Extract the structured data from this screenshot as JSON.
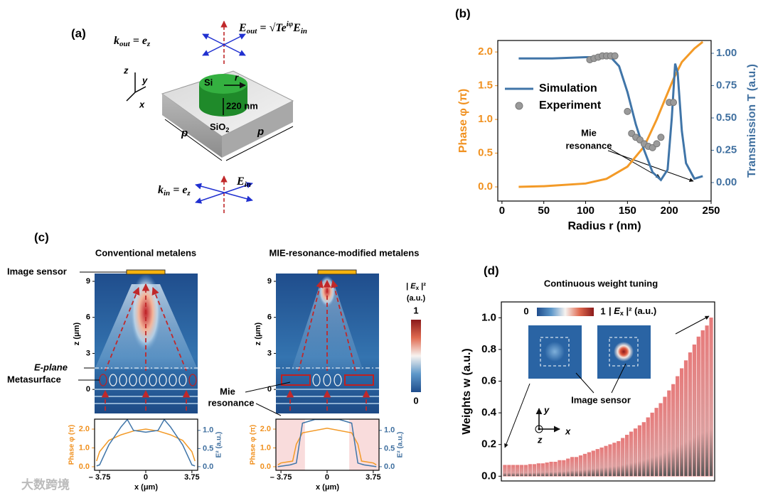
{
  "panel_labels": [
    "(a)",
    "(b)",
    "(c)",
    "(d)"
  ],
  "diagram": {
    "k_out": [
      "k",
      "out",
      " = ",
      "e",
      "z"
    ],
    "E_out": [
      "E",
      "out",
      " = √",
      "T",
      "e",
      "iφ",
      "E",
      "in"
    ],
    "si": "Si",
    "r": "r",
    "height": "220 nm",
    "p_left": "p",
    "p_right": "p",
    "substrate": [
      "SiO",
      "2"
    ],
    "k_in": [
      "k",
      "in",
      " = ",
      "e",
      "z"
    ],
    "E_in": [
      "E",
      "in"
    ],
    "axes": [
      "z",
      "y",
      "x"
    ]
  },
  "chart_data": [
    {
      "type": "line",
      "x_label": "Radius r (nm)",
      "y_label": "Phase φ (π)",
      "y2_label": "Transmission T (a.u.)",
      "annotation": [
        "Mie",
        "resonance"
      ],
      "xlim": [
        -5,
        250
      ],
      "xticks": [
        0,
        50,
        100,
        150,
        200,
        250
      ],
      "ylim": [
        -0.21,
        2.17
      ],
      "yticks": [
        {
          "value": 0,
          "label": "0.0"
        },
        {
          "value": 0.5,
          "label": "0.5"
        },
        {
          "value": 1,
          "label": "1.0"
        },
        {
          "value": 1.5,
          "label": "1.5"
        },
        {
          "value": 2,
          "label": "2.0"
        }
      ],
      "y2lim": [
        -0.143,
        1.099
      ],
      "y2ticks": [
        {
          "value": 0,
          "label": "0.00"
        },
        {
          "value": 0.25,
          "label": "0.25"
        },
        {
          "value": 0.5,
          "label": "0.50"
        },
        {
          "value": 0.75,
          "label": "0.75"
        },
        {
          "value": 1,
          "label": "1.00"
        }
      ],
      "ycolor": "#f0901e",
      "y2color": "#3f6f9f",
      "legend": "center left",
      "series": [
        {
          "color": "#f39a27",
          "x": [
            20,
            50,
            100,
            125,
            150,
            170,
            185,
            195,
            205,
            215,
            230,
            240
          ],
          "values": [
            0.0,
            0.01,
            0.05,
            0.12,
            0.3,
            0.6,
            1.0,
            1.3,
            1.6,
            1.85,
            2.05,
            2.15
          ]
        },
        {
          "name": "Simulation",
          "color": "#4075a8",
          "axis": "y2",
          "x": [
            20,
            60,
            100,
            130,
            140,
            150,
            160,
            170,
            180,
            190,
            198,
            203,
            207,
            210,
            215,
            220,
            230,
            240
          ],
          "values": [
            0.96,
            0.96,
            0.97,
            0.97,
            0.9,
            0.7,
            0.45,
            0.25,
            0.08,
            0.02,
            0.1,
            0.5,
            0.92,
            0.85,
            0.4,
            0.15,
            0.03,
            0.05
          ]
        },
        {
          "name": "Experiment",
          "color": "#9a9a9a",
          "axis": "y2",
          "mode": "markers",
          "x": [
            105,
            110,
            115,
            120,
            125,
            130,
            135,
            150,
            155,
            160,
            165,
            170,
            175,
            180,
            185,
            190,
            200,
            205
          ],
          "values": [
            0.95,
            0.96,
            0.97,
            0.98,
            0.98,
            0.98,
            0.98,
            0.55,
            0.38,
            0.35,
            0.33,
            0.3,
            0.28,
            0.27,
            0.3,
            0.35,
            0.62,
            0.62
          ]
        }
      ]
    },
    {
      "type": "line",
      "x_label": "x (μm)",
      "y_label": "Phase φ (π)",
      "y2_label": "E² (a.u.)",
      "xlim": [
        -4.16,
        4.22
      ],
      "xticks": [
        {
          "value": -3.75,
          "label": "– 3.75"
        },
        0,
        3.75
      ],
      "ylim": [
        -0.19,
        2.53
      ],
      "yticks": [
        {
          "value": 0,
          "label": "0.0"
        },
        {
          "value": 1,
          "label": "1.0"
        },
        {
          "value": 2,
          "label": "2.0"
        }
      ],
      "y2lim": [
        -0.1,
        1.31
      ],
      "y2ticks": [
        {
          "value": 0,
          "label": "0.0"
        },
        {
          "value": 0.5,
          "label": "0.5"
        },
        {
          "value": 1,
          "label": "1.0"
        }
      ],
      "ycolor": "#f0901e",
      "y2color": "#3f6f9f",
      "series": [
        {
          "color": "#f39a27",
          "x": [
            -4,
            -3.75,
            -3,
            -2,
            -1,
            0,
            1,
            2,
            3,
            3.75,
            4
          ],
          "values": [
            0.3,
            0.8,
            1.4,
            1.7,
            1.9,
            2.0,
            1.9,
            1.7,
            1.4,
            0.8,
            0.3
          ]
        },
        {
          "color": "#4075a8",
          "axis": "y2",
          "x": [
            -4,
            -3.75,
            -3,
            -2,
            -1.5,
            -1,
            0,
            1,
            1.5,
            2,
            3,
            3.75,
            4
          ],
          "values": [
            0.02,
            0.05,
            0.6,
            1.1,
            1.3,
            1.0,
            0.95,
            1.0,
            1.3,
            1.1,
            0.6,
            0.05,
            0.02
          ]
        }
      ]
    },
    {
      "type": "line",
      "x_label": "x (μm)",
      "y_label": "Phase φ (π)",
      "y2_label": "E² (a.u.)",
      "xlim": [
        -4.16,
        4.22
      ],
      "xticks": [
        {
          "value": -3.75,
          "label": "– 3.75"
        },
        0,
        3.75
      ],
      "ylim": [
        -0.19,
        2.53
      ],
      "yticks": [
        {
          "value": 0,
          "label": "0.0"
        },
        {
          "value": 1,
          "label": "1.0"
        },
        {
          "value": 2,
          "label": "2.0"
        }
      ],
      "y2lim": [
        -0.1,
        1.31
      ],
      "y2ticks": [
        {
          "value": 0,
          "label": "0.0"
        },
        {
          "value": 0.5,
          "label": "0.5"
        },
        {
          "value": 1,
          "label": "1.0"
        }
      ],
      "ycolor": "#f0901e",
      "y2color": "#3f6f9f",
      "shaded": [
        [
          -4.16,
          -1.8
        ],
        [
          1.8,
          4.22
        ]
      ],
      "shade_color": "#f9dcdc",
      "series": [
        {
          "color": "#f39a27",
          "x": [
            -4,
            -3.75,
            -2.8,
            -2.5,
            -2,
            0,
            2,
            2.5,
            2.8,
            3.75,
            4
          ],
          "values": [
            0.1,
            0.2,
            0.3,
            1.2,
            1.8,
            2.05,
            1.8,
            1.2,
            0.3,
            0.2,
            0.1
          ]
        },
        {
          "color": "#4075a8",
          "axis": "y2",
          "x": [
            -4,
            -3,
            -2.5,
            -2,
            -1,
            0,
            1,
            2,
            2.5,
            3,
            4
          ],
          "values": [
            0,
            0.05,
            0.1,
            1.2,
            1.3,
            1.3,
            1.3,
            1.2,
            0.1,
            0.05,
            0
          ]
        }
      ]
    },
    {
      "type": "bar",
      "title": "Continuous weight tuning",
      "y_label": "Weights w (a.u.)",
      "ylim": [
        -0.03,
        1.1
      ],
      "yticks": [
        {
          "value": 0,
          "label": "0.0"
        },
        {
          "value": 0.2,
          "label": "0.2"
        },
        {
          "value": 0.4,
          "label": "0.4"
        },
        {
          "value": 0.6,
          "label": "0.6"
        },
        {
          "value": 0.8,
          "label": "0.8"
        },
        {
          "value": 1,
          "label": "1.0"
        }
      ],
      "color": "#e77a7a",
      "values": [
        0.07,
        0.07,
        0.07,
        0.07,
        0.07,
        0.07,
        0.075,
        0.075,
        0.08,
        0.08,
        0.085,
        0.09,
        0.09,
        0.1,
        0.1,
        0.11,
        0.12,
        0.12,
        0.13,
        0.14,
        0.15,
        0.16,
        0.17,
        0.18,
        0.19,
        0.2,
        0.21,
        0.22,
        0.24,
        0.26,
        0.28,
        0.3,
        0.32,
        0.34,
        0.37,
        0.4,
        0.43,
        0.46,
        0.5,
        0.54,
        0.58,
        0.63,
        0.68,
        0.73,
        0.78,
        0.83,
        0.88,
        0.92,
        0.95,
        1.0
      ]
    }
  ],
  "field_maps": {
    "titles": [
      "Conventional metalens",
      "MIE-resonance-modified metalens"
    ],
    "z_label": "z (μm)",
    "zlim": [
      -2.0,
      9.65
    ],
    "zticks": [
      0,
      3,
      6,
      9
    ],
    "sensor": "Image sensor",
    "eplane": "E-plane",
    "metasurface": "Metasurface",
    "mie": [
      "Mie",
      "resonance"
    ],
    "colorbar": {
      "label": [
        "| ",
        "E",
        "x",
        " |²"
      ],
      "unit": "(a.u.)",
      "max": "1",
      "min": "0"
    }
  },
  "inset_d": {
    "min": "0",
    "max": "1",
    "label": [
      "| ",
      "E",
      "x",
      " |² (a.u.)"
    ],
    "sensor": "Image sensor",
    "axes": [
      "y",
      "x",
      "z"
    ]
  },
  "watermark": "大数跨境"
}
